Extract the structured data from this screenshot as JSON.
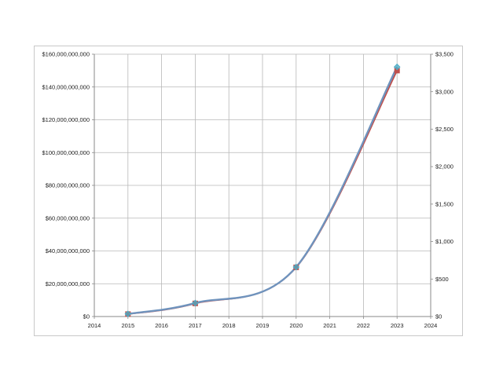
{
  "chart_data": {
    "type": "line",
    "title": "",
    "xlabel": "",
    "ylabel": "",
    "y2label": "",
    "grid": true,
    "legend": "none",
    "x_axis": {
      "min": 2014,
      "max": 2024,
      "ticks": [
        2014,
        2015,
        2016,
        2017,
        2018,
        2019,
        2020,
        2021,
        2022,
        2023,
        2024
      ],
      "tick_labels": [
        "2014",
        "2015",
        "2016",
        "2017",
        "2018",
        "2019",
        "2020",
        "2021",
        "2022",
        "2023",
        "2024"
      ]
    },
    "y_axis_left": {
      "min": 0,
      "max": 160000000000,
      "ticks": [
        0,
        20000000000,
        40000000000,
        60000000000,
        80000000000,
        100000000000,
        120000000000,
        140000000000,
        160000000000
      ],
      "tick_labels": [
        "$0",
        "$20,000,000,000",
        "$40,000,000,000",
        "$60,000,000,000",
        "$80,000,000,000",
        "$100,000,000,000",
        "$120,000,000,000",
        "$140,000,000,000",
        "$160,000,000,000"
      ]
    },
    "y_axis_right": {
      "min": 0,
      "max": 3500,
      "ticks": [
        0,
        500,
        1000,
        1500,
        2000,
        2500,
        3000,
        3500
      ],
      "tick_labels": [
        "$0",
        "$500",
        "$1,000",
        "$1,500",
        "$2,000",
        "$2,500",
        "$3,000",
        "$3,500"
      ]
    },
    "series": [
      {
        "axis": "left",
        "color": "#c0504d",
        "marker": "square",
        "x": [
          2015,
          2017,
          2020,
          2023
        ],
        "values": [
          1500000000,
          8000000000,
          30000000000,
          150000000000
        ]
      },
      {
        "axis": "right",
        "color": "#4bacc6",
        "marker": "diamond",
        "x": [
          2015,
          2017,
          2020,
          2023
        ],
        "values": [
          35,
          180,
          660,
          3330
        ]
      }
    ]
  }
}
